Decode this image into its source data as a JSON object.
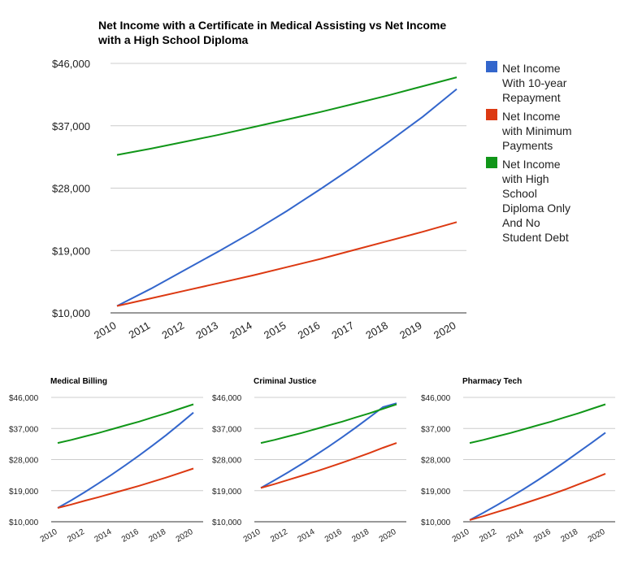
{
  "colors": {
    "repay10": "#3366cc",
    "minpay": "#dc3912",
    "diploma": "#109618"
  },
  "main": {
    "title_line1": "Net Income with a Certificate in Medical Assisting vs Net Income",
    "title_line2": "with a High School Diploma",
    "legend": [
      {
        "lines": [
          "Net Income",
          "With 10-year",
          "Repayment"
        ]
      },
      {
        "lines": [
          "Net Income",
          "with Minimum",
          "Payments"
        ]
      },
      {
        "lines": [
          "Net Income",
          "with High",
          "School",
          "Diploma Only",
          "And No",
          "Student Debt"
        ]
      }
    ]
  },
  "chart_data": [
    {
      "type": "line",
      "title": "Net Income with a Certificate in Medical Assisting vs Net Income with a High School Diploma",
      "x": [
        "2010",
        "2011",
        "2012",
        "2013",
        "2014",
        "2015",
        "2016",
        "2017",
        "2018",
        "2019",
        "2020"
      ],
      "yticks": [
        "$10,000",
        "$19,000",
        "$28,000",
        "$37,000",
        "$46,000"
      ],
      "ylim": [
        10000,
        46000
      ],
      "grid": true,
      "legend_position": "right",
      "series": [
        {
          "name": "Net Income With 10-year Repayment",
          "color": "#3366cc",
          "values": [
            11000,
            13500,
            16200,
            18900,
            21700,
            24700,
            27900,
            31200,
            34700,
            38300,
            42300
          ]
        },
        {
          "name": "Net Income with Minimum Payments",
          "color": "#dc3912",
          "values": [
            11000,
            12100,
            13200,
            14300,
            15400,
            16600,
            17800,
            19100,
            20400,
            21700,
            23100
          ]
        },
        {
          "name": "Net Income with High School Diploma Only And No Student Debt",
          "color": "#109618",
          "values": [
            32800,
            33700,
            34700,
            35700,
            36800,
            37900,
            39000,
            40200,
            41400,
            42700,
            44000
          ]
        }
      ]
    },
    {
      "type": "line",
      "title": "Medical Billing",
      "x": [
        "2010",
        "2011",
        "2012",
        "2013",
        "2014",
        "2015",
        "2016",
        "2017",
        "2018",
        "2019",
        "2020"
      ],
      "xticks_shown": [
        "2010",
        "2012",
        "2014",
        "2016",
        "2018",
        "2020"
      ],
      "yticks": [
        "$10,000",
        "$19,000",
        "$28,000",
        "$37,000",
        "$46,000"
      ],
      "ylim": [
        10000,
        46000
      ],
      "series": [
        {
          "color": "#3366cc",
          "values": [
            14000,
            16200,
            18600,
            21100,
            23700,
            26400,
            29200,
            32100,
            35100,
            38300,
            41600
          ]
        },
        {
          "color": "#dc3912",
          "values": [
            14000,
            15000,
            16100,
            17100,
            18200,
            19300,
            20400,
            21600,
            22800,
            24100,
            25400
          ]
        },
        {
          "color": "#109618",
          "values": [
            32800,
            33700,
            34700,
            35700,
            36800,
            37900,
            39000,
            40200,
            41400,
            42700,
            44000
          ]
        }
      ]
    },
    {
      "type": "line",
      "title": "Criminal Justice",
      "x": [
        "2010",
        "2011",
        "2012",
        "2013",
        "2014",
        "2015",
        "2016",
        "2017",
        "2018",
        "2019",
        "2020"
      ],
      "xticks_shown": [
        "2010",
        "2012",
        "2014",
        "2016",
        "2018",
        "2020"
      ],
      "yticks": [
        "$10,000",
        "$19,000",
        "$28,000",
        "$37,000",
        "$46,000"
      ],
      "ylim": [
        10000,
        46000
      ],
      "series": [
        {
          "color": "#3366cc",
          "values": [
            19800,
            22000,
            24300,
            26700,
            29200,
            31800,
            34500,
            37300,
            40200,
            43200,
            44300
          ]
        },
        {
          "color": "#dc3912",
          "values": [
            19800,
            20900,
            22100,
            23300,
            24500,
            25800,
            27100,
            28500,
            29900,
            31400,
            32800
          ]
        },
        {
          "color": "#109618",
          "values": [
            32800,
            33700,
            34700,
            35700,
            36800,
            37900,
            39000,
            40200,
            41400,
            42700,
            44000
          ]
        }
      ]
    },
    {
      "type": "line",
      "title": "Pharmacy Tech",
      "x": [
        "2010",
        "2011",
        "2012",
        "2013",
        "2014",
        "2015",
        "2016",
        "2017",
        "2018",
        "2019",
        "2020"
      ],
      "xticks_shown": [
        "2010",
        "2012",
        "2014",
        "2016",
        "2018",
        "2020"
      ],
      "yticks": [
        "$10,000",
        "$19,000",
        "$28,000",
        "$37,000",
        "$46,000"
      ],
      "ylim": [
        10000,
        46000
      ],
      "series": [
        {
          "color": "#3366cc",
          "values": [
            10500,
            12600,
            14800,
            17100,
            19500,
            22000,
            24600,
            27300,
            30100,
            32900,
            35800
          ]
        },
        {
          "color": "#dc3912",
          "values": [
            10500,
            11600,
            12800,
            14000,
            15300,
            16600,
            17900,
            19300,
            20800,
            22300,
            23900
          ]
        },
        {
          "color": "#109618",
          "values": [
            32800,
            33700,
            34700,
            35700,
            36800,
            37900,
            39000,
            40200,
            41400,
            42700,
            44000
          ]
        }
      ]
    }
  ]
}
